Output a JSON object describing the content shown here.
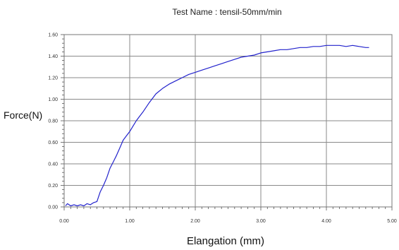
{
  "chart_data": {
    "type": "line",
    "title": "Test Name : tensil-50mm/min",
    "xlabel": "Elangation (mm)",
    "ylabel": "Force(N)",
    "xlim": [
      0,
      5
    ],
    "ylim": [
      0,
      1.6
    ],
    "x_ticks": [
      "0.00",
      "1.00",
      "2.00",
      "3.00",
      "4.00",
      "5.00"
    ],
    "y_ticks": [
      "0.00",
      "0.20",
      "0.40",
      "0.60",
      "0.80",
      "1.00",
      "1.20",
      "1.40",
      "1.60"
    ],
    "grid": true,
    "line_color": "#2222cc",
    "series": [
      {
        "x": [
          0.02,
          0.05,
          0.1,
          0.15,
          0.2,
          0.25,
          0.3,
          0.35,
          0.4,
          0.45,
          0.5,
          0.55,
          0.6,
          0.65,
          0.7,
          0.75,
          0.8,
          0.85,
          0.9,
          0.95,
          1.0,
          1.05,
          1.1,
          1.15,
          1.2,
          1.3,
          1.4,
          1.5,
          1.6,
          1.7,
          1.8,
          1.9,
          2.0,
          2.1,
          2.2,
          2.3,
          2.4,
          2.5,
          2.6,
          2.7,
          2.8,
          2.9,
          3.0,
          3.1,
          3.2,
          3.3,
          3.4,
          3.5,
          3.6,
          3.7,
          3.8,
          3.9,
          4.0,
          4.1,
          4.2,
          4.3,
          4.4,
          4.5,
          4.6,
          4.65
        ],
        "y": [
          0.01,
          0.03,
          0.01,
          0.02,
          0.01,
          0.02,
          0.01,
          0.03,
          0.02,
          0.04,
          0.05,
          0.14,
          0.2,
          0.27,
          0.36,
          0.42,
          0.48,
          0.55,
          0.62,
          0.66,
          0.7,
          0.75,
          0.8,
          0.84,
          0.88,
          0.97,
          1.05,
          1.1,
          1.14,
          1.17,
          1.2,
          1.23,
          1.25,
          1.27,
          1.29,
          1.31,
          1.33,
          1.35,
          1.37,
          1.39,
          1.4,
          1.41,
          1.43,
          1.44,
          1.45,
          1.46,
          1.46,
          1.47,
          1.48,
          1.48,
          1.49,
          1.49,
          1.5,
          1.5,
          1.5,
          1.49,
          1.5,
          1.49,
          1.48,
          1.48
        ]
      }
    ]
  }
}
